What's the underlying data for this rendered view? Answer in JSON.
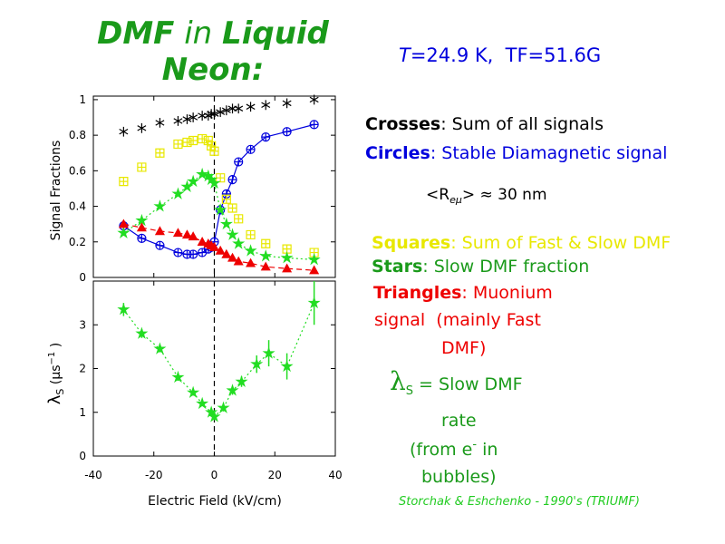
{
  "slide": {
    "title": [
      "DMF",
      " in ",
      "Liquid",
      "Neon:"
    ],
    "conditions": [
      "T",
      "=24.9 K,  TF=51.6G"
    ],
    "legend": [
      ": Sum of all signals",
      ": Stable Diamagnetic signal",
      ": Sum of Fast & Slow DMF",
      ": Slow DMF fraction",
      ": Muonium"
    ],
    "muonium_more": [
      "signal  (mainly Fast",
      "DMF)"
    ],
    "radius": [
      "<R",
      "eμ",
      "> ≈ 30 nm"
    ],
    "lambda_note": [
      "λ",
      "S",
      " = Slow DMF",
      "rate",
      "(from e",
      "-",
      " in",
      "bubbles)"
    ],
    "credit": "Storchak & Eshchenko - 1990's (TRIUMF)"
  },
  "chart_data": [
    {
      "type": "scatter",
      "y_label": "Signal Fractions",
      "xlim": [
        -40,
        40
      ],
      "xticks": [
        -40,
        -20,
        0,
        20,
        40
      ],
      "ylim": [
        0,
        1.02
      ],
      "yticks": [
        0,
        0.2,
        0.4,
        0.6,
        0.8,
        1
      ],
      "x": [
        -30,
        -24,
        -18,
        -12,
        -9,
        -7,
        -4,
        -2,
        -1,
        0,
        2,
        4,
        6,
        8,
        12,
        17,
        24,
        33
      ],
      "series": [
        {
          "name": "Crosses",
          "color": "#000000",
          "marker": "asterisk",
          "line": "none",
          "values": [
            0.82,
            0.84,
            0.87,
            0.88,
            0.89,
            0.9,
            0.91,
            0.91,
            0.92,
            0.92,
            0.93,
            0.94,
            0.95,
            0.95,
            0.96,
            0.97,
            0.98,
            1.0
          ]
        },
        {
          "name": "Circles",
          "color": "#0000dd",
          "marker": "circle-plus",
          "line": "solid",
          "values": [
            0.29,
            0.22,
            0.18,
            0.14,
            0.13,
            0.13,
            0.14,
            0.16,
            0.17,
            0.2,
            0.38,
            0.47,
            0.55,
            0.65,
            0.72,
            0.79,
            0.82,
            0.86
          ]
        },
        {
          "name": "Squares",
          "color": "#e8e800",
          "marker": "square-plus",
          "line": "none",
          "values": [
            0.54,
            0.62,
            0.7,
            0.75,
            0.76,
            0.77,
            0.78,
            0.77,
            0.74,
            0.71,
            0.56,
            0.44,
            0.39,
            0.33,
            0.24,
            0.19,
            0.16,
            0.14
          ]
        },
        {
          "name": "Stars",
          "color": "#22dd22",
          "marker": "star",
          "line": "dotted",
          "values": [
            0.25,
            0.32,
            0.4,
            0.47,
            0.51,
            0.54,
            0.58,
            0.57,
            0.55,
            0.53,
            0.38,
            0.3,
            0.24,
            0.19,
            0.15,
            0.12,
            0.11,
            0.1
          ]
        },
        {
          "name": "Triangles",
          "color": "#ee0000",
          "marker": "triangle",
          "line": "dashed",
          "values": [
            0.3,
            0.28,
            0.26,
            0.25,
            0.24,
            0.23,
            0.2,
            0.19,
            0.18,
            0.17,
            0.15,
            0.13,
            0.11,
            0.09,
            0.08,
            0.06,
            0.05,
            0.04
          ]
        }
      ]
    },
    {
      "type": "errorbar",
      "x_label": "Electric Field (kV/cm)",
      "y_label": [
        "λ",
        "S",
        " (μs",
        "−1",
        " )"
      ],
      "xlim": [
        -40,
        40
      ],
      "xticks": [
        -40,
        -20,
        0,
        20,
        40
      ],
      "ylim": [
        0,
        4
      ],
      "yticks": [
        0,
        1,
        2,
        3
      ],
      "x": [
        -30,
        -24,
        -18,
        -12,
        -7,
        -4,
        -1,
        0,
        3,
        6,
        9,
        14,
        18,
        24,
        33
      ],
      "series": [
        {
          "color": "#22dd22",
          "marker": "star",
          "line": "dotted",
          "values": [
            3.35,
            2.8,
            2.45,
            1.8,
            1.45,
            1.2,
            1.0,
            0.9,
            1.1,
            1.5,
            1.7,
            2.1,
            2.35,
            2.05,
            3.5
          ],
          "errors": [
            0.15,
            0.1,
            0.08,
            0.08,
            0.07,
            0.06,
            0.06,
            0.08,
            0.08,
            0.1,
            0.12,
            0.2,
            0.3,
            0.3,
            0.5
          ]
        }
      ]
    }
  ]
}
